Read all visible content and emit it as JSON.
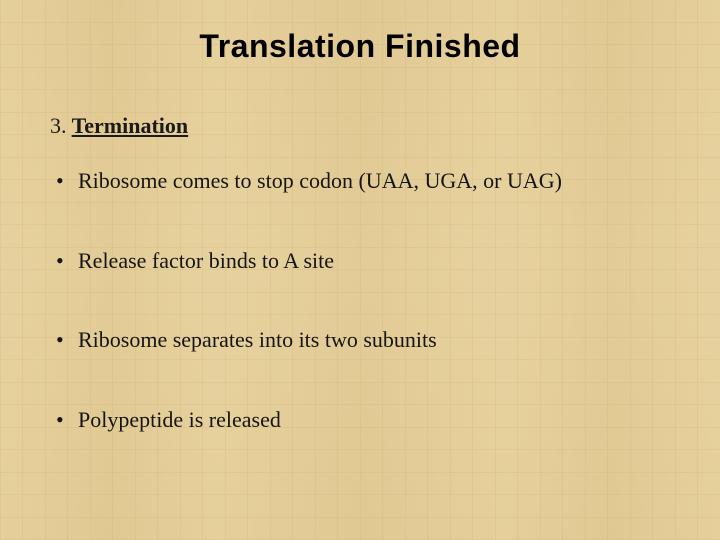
{
  "slide": {
    "background_base": "#e6cf9a",
    "text_color": "#1a1a1a",
    "title": {
      "text": "Translation Finished",
      "font_family": "Arial Black",
      "font_weight": 900,
      "font_size_pt": 32,
      "color": "#000000",
      "align": "center"
    },
    "subheading": {
      "number": "3.",
      "label": "Termination",
      "font_family": "Georgia",
      "font_size_pt": 22,
      "font_weight": "bold",
      "underline_label": true
    },
    "bullets": {
      "font_family": "Georgia",
      "font_size_pt": 22,
      "marker": "•",
      "items": [
        "Ribosome comes to stop codon (UAA, UGA, or UAG)",
        "Release factor binds to A site",
        "Ribosome separates into its two subunits",
        "Polypeptide is released"
      ]
    }
  }
}
